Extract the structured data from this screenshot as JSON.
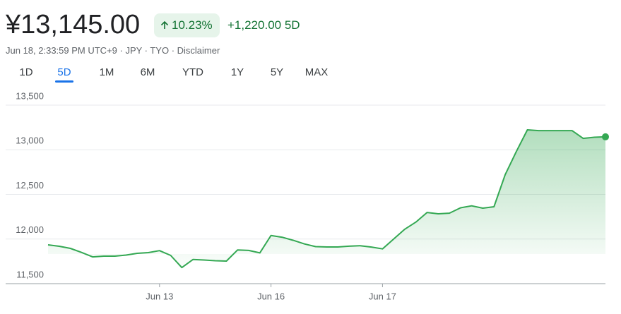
{
  "header": {
    "price": "¥13,145.00",
    "change_percent": "10.23%",
    "change": "+1,220.00",
    "period": "5D",
    "meta": "Jun 18, 2:33:59 PM UTC+9 · JPY · TYO · Disclaimer"
  },
  "tabs": {
    "items": [
      "1D",
      "5D",
      "1M",
      "6M",
      "YTD",
      "1Y",
      "5Y",
      "MAX"
    ],
    "selected": 1
  },
  "chart_data": {
    "type": "line",
    "categories": [
      null,
      null,
      null,
      null,
      null,
      null,
      null,
      null,
      null,
      null,
      "Jun 13",
      null,
      null,
      null,
      null,
      null,
      null,
      null,
      null,
      null,
      "Jun 16",
      null,
      null,
      null,
      null,
      null,
      null,
      null,
      null,
      null,
      "Jun 17",
      null,
      null,
      null,
      null,
      null,
      null,
      null,
      null,
      null,
      null,
      null,
      null,
      null,
      null,
      null,
      null,
      null,
      null,
      null,
      null
    ],
    "series": [
      {
        "name": "Price",
        "color": "#34a853",
        "values": [
          11935,
          11919,
          11895,
          11850,
          11800,
          11808,
          11808,
          11820,
          11840,
          11848,
          11870,
          11816,
          11680,
          11770,
          11765,
          11757,
          11753,
          11878,
          11872,
          11845,
          12040,
          12020,
          11985,
          11945,
          11915,
          11911,
          11911,
          11920,
          11925,
          11910,
          11890,
          12000,
          12110,
          12190,
          12298,
          12283,
          12290,
          12350,
          12372,
          12346,
          12362,
          12720,
          12980,
          13223,
          13215,
          13215,
          13215,
          13215,
          13128,
          13140,
          13145
        ]
      }
    ],
    "ylim": [
      11500,
      13500
    ],
    "yticks": [
      {
        "value": 11500,
        "label": "11,500"
      },
      {
        "value": 12000,
        "label": "12,000"
      },
      {
        "value": 12500,
        "label": "12,500"
      },
      {
        "value": 13000,
        "label": "13,000"
      },
      {
        "value": 13500,
        "label": "13,500"
      }
    ],
    "grid": true
  }
}
